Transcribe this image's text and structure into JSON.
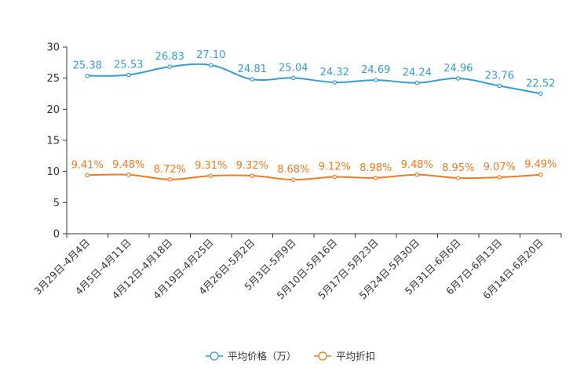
{
  "chart_data": {
    "type": "line",
    "categories": [
      "3月29日-4月4日",
      "4月5日-4月11日",
      "4月12日-4月18日",
      "4月19日-4月25日",
      "4月26日-5月2日",
      "5月3日-5月9日",
      "5月10日-5月16日",
      "5月17日-5月23日",
      "5月24日-5月30日",
      "5月31日-6月6日",
      "6月7日-6月13日",
      "6月14日-6月20日"
    ],
    "series": [
      {
        "name": "平均价格（万）",
        "color": "#3a9bd0",
        "values": [
          25.38,
          25.53,
          26.83,
          27.1,
          24.81,
          25.04,
          24.32,
          24.69,
          24.24,
          24.96,
          23.76,
          22.52
        ],
        "labels": [
          "25.38",
          "25.53",
          "26.83",
          "27.10",
          "24.81",
          "25.04",
          "24.32",
          "24.69",
          "24.24",
          "24.96",
          "23.76",
          "22.52"
        ]
      },
      {
        "name": "平均折扣",
        "color": "#f07b22",
        "values": [
          9.41,
          9.48,
          8.72,
          9.31,
          9.32,
          8.68,
          9.12,
          8.98,
          9.48,
          8.95,
          9.07,
          9.49
        ],
        "labels": [
          "9.41%",
          "9.48%",
          "8.72%",
          "9.31%",
          "9.32%",
          "8.68%",
          "9.12%",
          "8.98%",
          "9.48%",
          "8.95%",
          "9.07%",
          "9.49%"
        ]
      }
    ],
    "yticks": [
      "0",
      "5",
      "10",
      "15",
      "20",
      "25",
      "30"
    ],
    "ylim": [
      0,
      30
    ],
    "title": "",
    "xlabel": "",
    "ylabel": "",
    "grid": false,
    "legend": "bottom-center"
  }
}
